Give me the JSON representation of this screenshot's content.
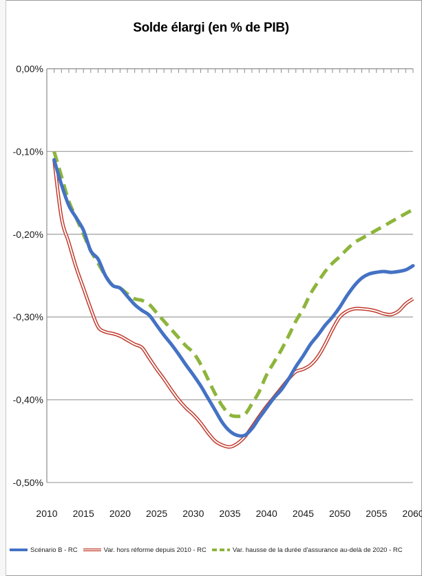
{
  "chart_data": {
    "type": "line",
    "title": "Solde élargi (en % de PIB)",
    "xlabel": "",
    "ylabel": "",
    "xlim": [
      2010,
      2060
    ],
    "ylim": [
      -0.5,
      0.0
    ],
    "x_ticks": [
      "2010",
      "2015",
      "2020",
      "2025",
      "2030",
      "2035",
      "2040",
      "2045",
      "2050",
      "2055",
      "2060"
    ],
    "y_ticks": [
      "0,00%",
      "-0,10%",
      "-0,20%",
      "-0,30%",
      "-0,40%",
      "-0,50%"
    ],
    "y_tick_values": [
      0.0,
      -0.1,
      -0.2,
      -0.3,
      -0.4,
      -0.5
    ],
    "grid": "horizontal",
    "legend_position": "bottom",
    "series": [
      {
        "name": "Scénario B - RC",
        "color": "#4472c4",
        "style": "solid",
        "x": [
          2011,
          2012,
          2013,
          2014,
          2015,
          2016,
          2017,
          2018,
          2019,
          2020,
          2021,
          2022,
          2023,
          2024,
          2025,
          2026,
          2027,
          2028,
          2029,
          2030,
          2031,
          2032,
          2033,
          2034,
          2035,
          2036,
          2037,
          2038,
          2039,
          2040,
          2041,
          2042,
          2043,
          2044,
          2045,
          2046,
          2047,
          2048,
          2049,
          2050,
          2051,
          2052,
          2053,
          2054,
          2055,
          2056,
          2057,
          2058,
          2059,
          2060
        ],
        "values": [
          -0.11,
          -0.14,
          -0.165,
          -0.18,
          -0.195,
          -0.22,
          -0.23,
          -0.25,
          -0.262,
          -0.265,
          -0.275,
          -0.285,
          -0.292,
          -0.298,
          -0.31,
          -0.322,
          -0.333,
          -0.345,
          -0.358,
          -0.37,
          -0.383,
          -0.398,
          -0.413,
          -0.428,
          -0.438,
          -0.443,
          -0.443,
          -0.435,
          -0.422,
          -0.41,
          -0.398,
          -0.388,
          -0.375,
          -0.36,
          -0.347,
          -0.333,
          -0.322,
          -0.31,
          -0.3,
          -0.288,
          -0.274,
          -0.262,
          -0.253,
          -0.248,
          -0.246,
          -0.245,
          -0.246,
          -0.245,
          -0.243,
          -0.238
        ]
      },
      {
        "name": "Var. hors réforme depuis 2010 - RC",
        "color": "#c0392b",
        "style": "double",
        "x": [
          2011,
          2012,
          2013,
          2014,
          2015,
          2016,
          2017,
          2018,
          2019,
          2020,
          2021,
          2022,
          2023,
          2024,
          2025,
          2026,
          2027,
          2028,
          2029,
          2030,
          2031,
          2032,
          2033,
          2034,
          2035,
          2036,
          2037,
          2038,
          2039,
          2040,
          2041,
          2042,
          2043,
          2044,
          2045,
          2046,
          2047,
          2048,
          2049,
          2050,
          2051,
          2052,
          2053,
          2054,
          2055,
          2056,
          2057,
          2058,
          2059,
          2060
        ],
        "values": [
          -0.11,
          -0.18,
          -0.21,
          -0.24,
          -0.265,
          -0.29,
          -0.312,
          -0.318,
          -0.32,
          -0.323,
          -0.328,
          -0.333,
          -0.337,
          -0.35,
          -0.363,
          -0.375,
          -0.388,
          -0.4,
          -0.41,
          -0.418,
          -0.428,
          -0.44,
          -0.45,
          -0.455,
          -0.457,
          -0.453,
          -0.445,
          -0.433,
          -0.42,
          -0.408,
          -0.397,
          -0.386,
          -0.375,
          -0.366,
          -0.363,
          -0.358,
          -0.348,
          -0.333,
          -0.315,
          -0.3,
          -0.293,
          -0.29,
          -0.29,
          -0.291,
          -0.293,
          -0.296,
          -0.297,
          -0.293,
          -0.284,
          -0.278
        ]
      },
      {
        "name": "Var. hausse de la durée d'assurance au-delà de 2020 - RC",
        "color": "#8db53c",
        "style": "dashed",
        "x": [
          2011,
          2012,
          2013,
          2014,
          2015,
          2016,
          2017,
          2018,
          2019,
          2020,
          2021,
          2022,
          2023,
          2024,
          2025,
          2026,
          2027,
          2028,
          2029,
          2030,
          2031,
          2032,
          2033,
          2034,
          2035,
          2036,
          2037,
          2038,
          2039,
          2040,
          2041,
          2042,
          2043,
          2044,
          2045,
          2046,
          2047,
          2048,
          2049,
          2050,
          2051,
          2052,
          2053,
          2054,
          2055,
          2056,
          2057,
          2058,
          2059,
          2060
        ],
        "values": [
          -0.1,
          -0.13,
          -0.16,
          -0.18,
          -0.2,
          -0.22,
          -0.235,
          -0.25,
          -0.262,
          -0.265,
          -0.272,
          -0.278,
          -0.28,
          -0.285,
          -0.295,
          -0.305,
          -0.315,
          -0.325,
          -0.335,
          -0.343,
          -0.357,
          -0.375,
          -0.393,
          -0.408,
          -0.418,
          -0.42,
          -0.418,
          -0.405,
          -0.39,
          -0.37,
          -0.355,
          -0.34,
          -0.323,
          -0.305,
          -0.29,
          -0.272,
          -0.258,
          -0.245,
          -0.235,
          -0.227,
          -0.218,
          -0.21,
          -0.205,
          -0.2,
          -0.195,
          -0.19,
          -0.185,
          -0.18,
          -0.175,
          -0.17
        ]
      }
    ]
  }
}
